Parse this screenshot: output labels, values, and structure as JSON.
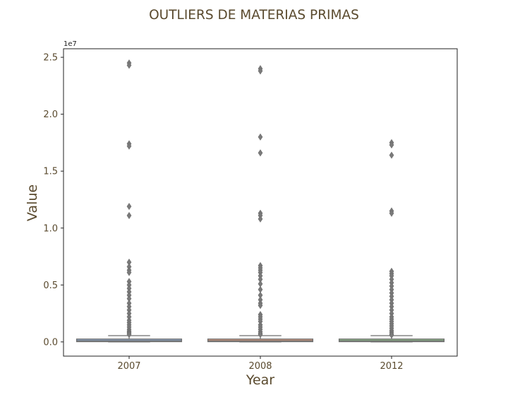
{
  "chart_data": {
    "type": "box",
    "title": "OUTLIERS DE MATERIAS PRIMAS",
    "xlabel": "Year",
    "ylabel": "Value",
    "y_offset_label": "1e7",
    "ylim": [
      -1250000,
      25750000
    ],
    "yticks": [
      0,
      5000000,
      10000000,
      15000000,
      20000000,
      25000000
    ],
    "ytick_labels": [
      "0.0",
      "0.5",
      "1.0",
      "1.5",
      "2.0",
      "2.5"
    ],
    "grid": false,
    "categories": [
      "2007",
      "2008",
      "2012"
    ],
    "colors": {
      "2007": "#8fa9c9",
      "2008": "#d99a7e",
      "2012": "#8fbf8b",
      "outline": "#6e6e6e",
      "text": "#5a4a2e"
    },
    "boxes": [
      {
        "category": "2007",
        "whisker_low": 0,
        "q1": 20000,
        "median": 100000,
        "q3": 250000,
        "whisker_high": 550000,
        "outliers": [
          24500000,
          24300000,
          17400000,
          17200000,
          11900000,
          11100000,
          7000000,
          6600000,
          6300000,
          6100000,
          5300000,
          5000000,
          4700000,
          4400000,
          4100000,
          3800000,
          3400000,
          3100000,
          2800000,
          2500000,
          2200000,
          1900000,
          1700000,
          1500000,
          1300000,
          1100000,
          950000,
          850000,
          750000,
          650000
        ]
      },
      {
        "category": "2008",
        "whisker_low": 0,
        "q1": 20000,
        "median": 100000,
        "q3": 250000,
        "whisker_high": 550000,
        "outliers": [
          24000000,
          23800000,
          18000000,
          16600000,
          11300000,
          11100000,
          10800000,
          6700000,
          6500000,
          6300000,
          6100000,
          5800000,
          5500000,
          5100000,
          4600000,
          4100000,
          3700000,
          3400000,
          3200000,
          2400000,
          2200000,
          2000000,
          1800000,
          1500000,
          1300000,
          1100000,
          900000,
          750000,
          650000
        ]
      },
      {
        "category": "2012",
        "whisker_low": 0,
        "q1": 20000,
        "median": 100000,
        "q3": 250000,
        "whisker_high": 550000,
        "outliers": [
          17500000,
          17300000,
          16400000,
          11500000,
          11300000,
          6200000,
          6000000,
          5800000,
          5500000,
          5200000,
          4900000,
          4600000,
          4300000,
          4000000,
          3700000,
          3400000,
          3100000,
          2800000,
          2500000,
          2200000,
          2000000,
          1800000,
          1600000,
          1400000,
          1200000,
          1000000,
          850000,
          700000,
          600000
        ]
      }
    ]
  }
}
